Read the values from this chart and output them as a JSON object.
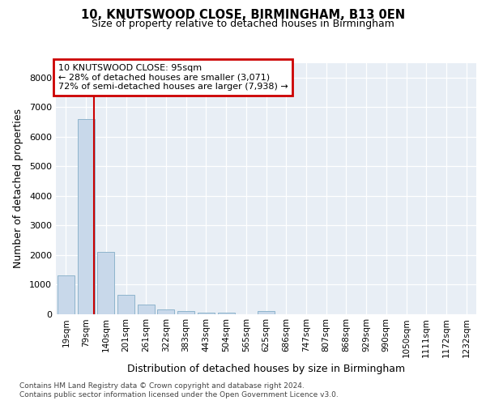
{
  "title1": "10, KNUTSWOOD CLOSE, BIRMINGHAM, B13 0EN",
  "title2": "Size of property relative to detached houses in Birmingham",
  "xlabel": "Distribution of detached houses by size in Birmingham",
  "ylabel": "Number of detached properties",
  "footnote1": "Contains HM Land Registry data © Crown copyright and database right 2024.",
  "footnote2": "Contains public sector information licensed under the Open Government Licence v3.0.",
  "annotation_title": "10 KNUTSWOOD CLOSE: 95sqm",
  "annotation_line2": "← 28% of detached houses are smaller (3,071)",
  "annotation_line3": "72% of semi-detached houses are larger (7,938) →",
  "bar_labels": [
    "19sqm",
    "79sqm",
    "140sqm",
    "201sqm",
    "261sqm",
    "322sqm",
    "383sqm",
    "443sqm",
    "504sqm",
    "565sqm",
    "625sqm",
    "686sqm",
    "747sqm",
    "807sqm",
    "868sqm",
    "929sqm",
    "990sqm",
    "1050sqm",
    "1111sqm",
    "1172sqm",
    "1232sqm"
  ],
  "bar_values": [
    1300,
    6600,
    2100,
    650,
    310,
    150,
    100,
    50,
    50,
    0,
    100,
    0,
    0,
    0,
    0,
    0,
    0,
    0,
    0,
    0,
    0
  ],
  "bar_color": "#c8d8ea",
  "bar_edge_color": "#8eb4cc",
  "vline_color": "#cc0000",
  "annotation_box_edgecolor": "#cc0000",
  "bg_color": "#e8eef5",
  "ylim": [
    0,
    8500
  ],
  "yticks": [
    0,
    1000,
    2000,
    3000,
    4000,
    5000,
    6000,
    7000,
    8000
  ],
  "vline_x": 1.42,
  "title1_fontsize": 10.5,
  "title2_fontsize": 9,
  "axis_label_fontsize": 9,
  "tick_fontsize": 8,
  "xtick_fontsize": 7.5,
  "annotation_fontsize": 8,
  "footnote_fontsize": 6.5
}
